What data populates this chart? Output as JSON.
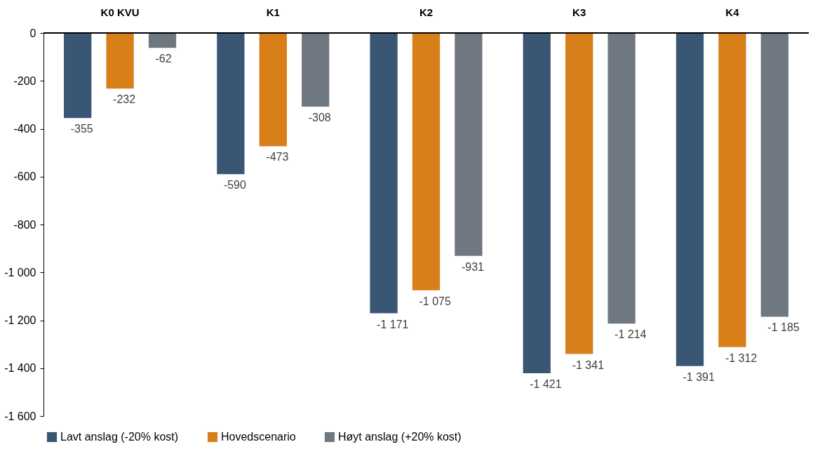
{
  "chart_data": {
    "type": "bar",
    "categories": [
      "K0 KVU",
      "K1",
      "K2",
      "K3",
      "K4"
    ],
    "series": [
      {
        "name": "Lavt anslag (-20% kost)",
        "color": "#3a5675",
        "values": [
          -355,
          -590,
          -1171,
          -1421,
          -1391
        ],
        "value_labels": [
          "-355",
          "-590",
          "-1 171",
          "-1 421",
          "-1 391"
        ]
      },
      {
        "name": "Hovedscenario",
        "color": "#d87f1a",
        "values": [
          -232,
          -473,
          -1075,
          -1341,
          -1312
        ],
        "value_labels": [
          "-232",
          "-473",
          "-1 075",
          "-1 341",
          "-1 312"
        ]
      },
      {
        "name": "Høyt anslag (+20% kost)",
        "color": "#6f7780",
        "values": [
          -62,
          -308,
          -931,
          -1214,
          -1185
        ],
        "value_labels": [
          "-62",
          "-308",
          "-931",
          "-1 214",
          "-1 185"
        ]
      }
    ],
    "ylim": [
      -1600,
      0
    ],
    "yticks": [
      0,
      -200,
      -400,
      -600,
      -800,
      {
        "value": -1000,
        "label": "-1 000"
      },
      {
        "value": -1200,
        "label": "-1 200"
      },
      {
        "value": -1400,
        "label": "-1 400"
      },
      {
        "value": -1600,
        "label": "-1 600"
      }
    ],
    "grid": false,
    "legend": "bottom"
  }
}
